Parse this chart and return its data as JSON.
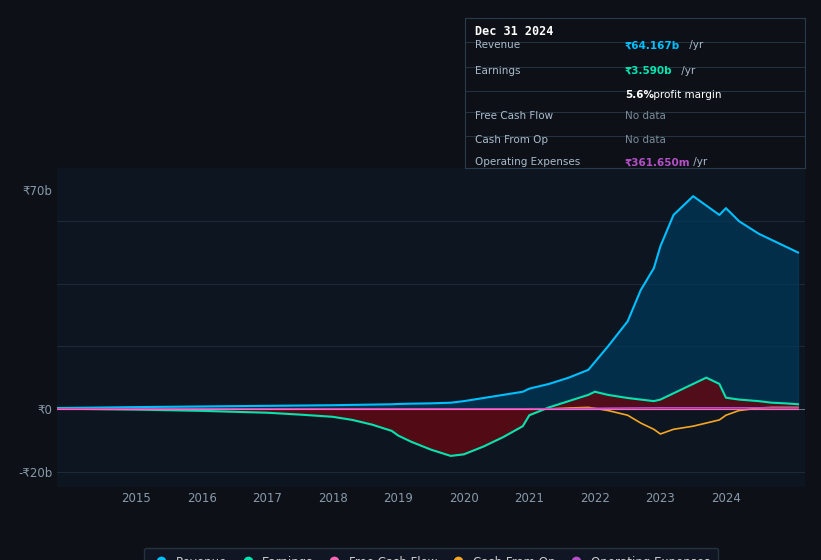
{
  "background_color": "#0d1117",
  "plot_bg_color": "#0d1520",
  "grid_color": "#1e2d3d",
  "xlabel_years": [
    2015,
    2016,
    2017,
    2018,
    2019,
    2020,
    2021,
    2022,
    2023,
    2024
  ],
  "years_float": [
    2013.8,
    2014.2,
    2014.6,
    2015.0,
    2015.5,
    2016.0,
    2016.5,
    2017.0,
    2017.5,
    2018.0,
    2018.3,
    2018.6,
    2018.9,
    2019.0,
    2019.2,
    2019.5,
    2019.8,
    2020.0,
    2020.3,
    2020.6,
    2020.9,
    2021.0,
    2021.3,
    2021.6,
    2021.9,
    2022.0,
    2022.2,
    2022.5,
    2022.7,
    2022.9,
    2023.0,
    2023.2,
    2023.5,
    2023.7,
    2023.9,
    2024.0,
    2024.2,
    2024.5,
    2024.7,
    2024.9,
    2025.1
  ],
  "revenue": [
    0.3,
    0.4,
    0.5,
    0.6,
    0.7,
    0.8,
    0.9,
    1.0,
    1.1,
    1.2,
    1.3,
    1.4,
    1.5,
    1.6,
    1.7,
    1.8,
    2.0,
    2.5,
    3.5,
    4.5,
    5.5,
    6.5,
    8.0,
    10.0,
    12.5,
    15.0,
    20.0,
    28.0,
    38.0,
    45.0,
    52.0,
    62.0,
    68.0,
    65.0,
    62.0,
    64.167,
    60.0,
    56.0,
    54.0,
    52.0,
    50.0
  ],
  "earnings": [
    0.1,
    0.0,
    -0.1,
    -0.2,
    -0.4,
    -0.6,
    -0.9,
    -1.2,
    -1.8,
    -2.5,
    -3.5,
    -5.0,
    -7.0,
    -8.5,
    -10.5,
    -13.0,
    -15.0,
    -14.5,
    -12.0,
    -9.0,
    -5.5,
    -2.0,
    0.5,
    2.5,
    4.5,
    5.5,
    4.5,
    3.5,
    3.0,
    2.5,
    3.0,
    5.0,
    8.0,
    10.0,
    8.0,
    3.59,
    3.0,
    2.5,
    2.0,
    1.8,
    1.5
  ],
  "cash_from_op": [
    0.05,
    0.05,
    0.05,
    0.05,
    0.05,
    0.05,
    0.05,
    0.05,
    0.05,
    0.05,
    0.05,
    0.05,
    0.05,
    0.05,
    0.0,
    0.0,
    0.0,
    0.0,
    0.0,
    0.0,
    0.0,
    0.0,
    0.0,
    0.3,
    0.5,
    0.2,
    -0.5,
    -2.0,
    -4.5,
    -6.5,
    -8.0,
    -6.5,
    -5.5,
    -4.5,
    -3.5,
    -2.0,
    -0.5,
    0.3,
    0.5,
    0.5,
    0.5
  ],
  "operating_expenses": [
    0.05,
    0.05,
    0.05,
    0.05,
    0.05,
    0.05,
    0.05,
    0.05,
    0.05,
    0.05,
    0.05,
    0.05,
    0.05,
    0.05,
    0.05,
    0.05,
    0.05,
    0.05,
    0.05,
    0.05,
    0.05,
    0.06,
    0.07,
    0.1,
    0.15,
    0.2,
    0.25,
    0.3,
    0.33,
    0.35,
    0.36,
    0.36165,
    0.36165,
    0.36165,
    0.36165,
    0.36165,
    0.36165,
    0.36165,
    0.36165,
    0.36165,
    0.36165
  ],
  "free_cash_flow": [
    0.0,
    0.0,
    0.0,
    0.0,
    0.0,
    0.0,
    0.0,
    0.0,
    0.0,
    0.0,
    0.0,
    0.0,
    0.0,
    0.0,
    0.0,
    0.0,
    0.0,
    0.0,
    0.0,
    0.0,
    0.0,
    0.0,
    0.0,
    0.0,
    0.0,
    0.0,
    0.0,
    0.0,
    0.0,
    0.0,
    0.0,
    0.0,
    0.0,
    0.0,
    0.0,
    0.0,
    0.0,
    0.0,
    0.0,
    0.0,
    0.0
  ],
  "revenue_color": "#00bfff",
  "revenue_fill_color": "#003a5c",
  "earnings_color": "#00e5b0",
  "earnings_fill_color": "#5a0a14",
  "cash_from_op_color": "#f5a623",
  "operating_expenses_color": "#b44fc8",
  "free_cash_flow_color": "#ff69b4",
  "legend_bg": "#111827",
  "legend_border": "#2a3a4a",
  "revenue_label": "Revenue",
  "earnings_label": "Earnings",
  "free_cash_flow_label": "Free Cash Flow",
  "cash_from_op_label": "Cash From Op",
  "operating_expenses_label": "Operating Expenses",
  "tooltip_title": "Dec 31 2024",
  "tooltip_revenue_label": "Revenue",
  "tooltip_revenue_val": "₹64.167b",
  "tooltip_revenue_suffix": " /yr",
  "tooltip_earnings_label": "Earnings",
  "tooltip_earnings_val": "₹3.590b",
  "tooltip_earnings_suffix": " /yr",
  "tooltip_profit_pct": "5.6%",
  "tooltip_profit_text": " profit margin",
  "tooltip_fcf_label": "Free Cash Flow",
  "tooltip_fcf_val": "No data",
  "tooltip_cfop_label": "Cash From Op",
  "tooltip_cfop_val": "No data",
  "tooltip_opex_label": "Operating Expenses",
  "tooltip_opex_val": "₹361.650m",
  "tooltip_opex_suffix": " /yr"
}
